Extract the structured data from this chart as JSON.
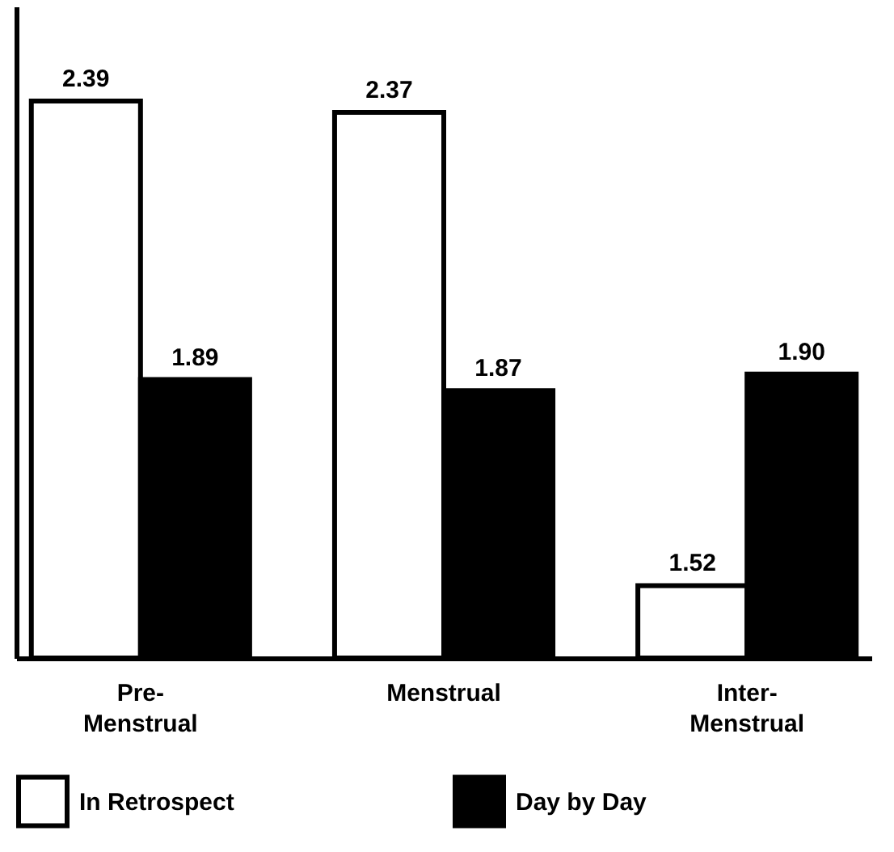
{
  "chart_data": {
    "type": "bar",
    "categories": [
      "Pre-\nMenstrual",
      "Menstrual",
      "Inter-\nMenstrual"
    ],
    "series": [
      {
        "name": "In Retrospect",
        "color": "#ffffff",
        "values": [
          2.39,
          2.37,
          1.52
        ],
        "value_labels": [
          "2.39",
          "2.37",
          "1.52"
        ]
      },
      {
        "name": "Day by Day",
        "color": "#000000",
        "values": [
          1.89,
          1.87,
          1.9
        ],
        "value_labels": [
          "1.89",
          "1.87",
          "1.90"
        ]
      }
    ],
    "ylim": [
      1.39,
      2.56
    ],
    "legend": "bottom"
  }
}
